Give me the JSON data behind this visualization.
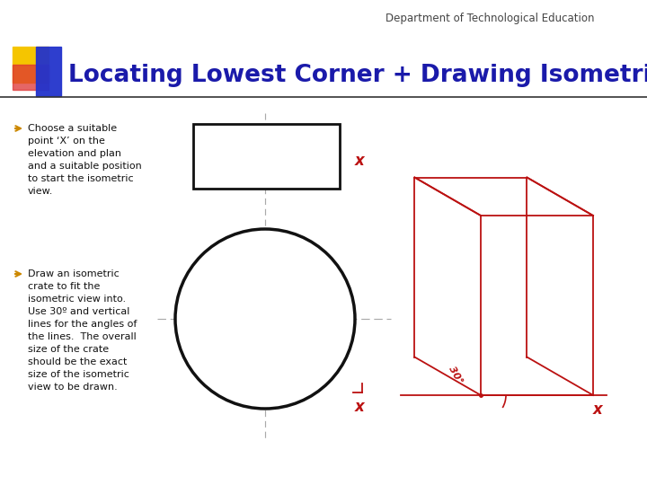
{
  "bg_color": "#ffffff",
  "header_text": "Department of Technological Education",
  "title_text": "Locating Lowest Corner + Drawing Isometric Crate",
  "title_color": "#1a1aaa",
  "title_fontsize": 19,
  "header_fontsize": 8.5,
  "header_color": "#444444",
  "bullet_color": "#cc8800",
  "bullet_items": [
    "Choose a suitable\npoint ‘X’ on the\nelevation and plan\nand a suitable position\nto start the isometric\nview.",
    "Draw an isometric\ncrate to fit the\nisometric view into.\nUse 30º and vertical\nlines for the angles of\nthe lines.  The overall\nsize of the crate\nshould be the exact\nsize of the isometric\nview to be drawn."
  ],
  "red_color": "#bb1111",
  "black_color": "#111111"
}
